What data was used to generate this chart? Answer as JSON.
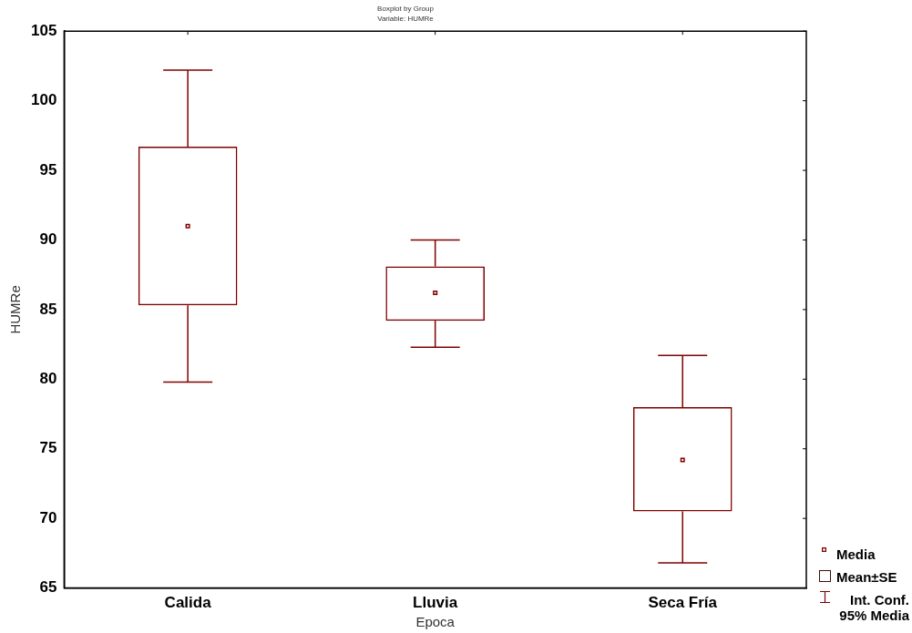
{
  "chart_data": {
    "type": "box",
    "title": "Boxplot by Group",
    "subtitle": "Variable: HUMRe",
    "xlabel": "Epoca",
    "ylabel": "HUMRe",
    "categories": [
      "Calida",
      "Lluvia",
      "Seca Fría"
    ],
    "boxes": [
      {
        "low": 79.8,
        "q1": 85.3,
        "median": 91.0,
        "q3": 96.7,
        "high": 102.2
      },
      {
        "low": 82.3,
        "q1": 84.2,
        "median": 86.2,
        "q3": 88.1,
        "high": 90.0
      },
      {
        "low": 66.8,
        "q1": 70.5,
        "median": 74.2,
        "q3": 78.0,
        "high": 81.7
      }
    ],
    "color": "#800000",
    "ylim": [
      65,
      105
    ],
    "yticks": [
      65,
      70,
      75,
      80,
      85,
      90,
      95,
      100,
      105
    ],
    "grid": false,
    "annotations": [
      "Media",
      "Mean±SE",
      "Int. Conf. 95% Media"
    ]
  }
}
